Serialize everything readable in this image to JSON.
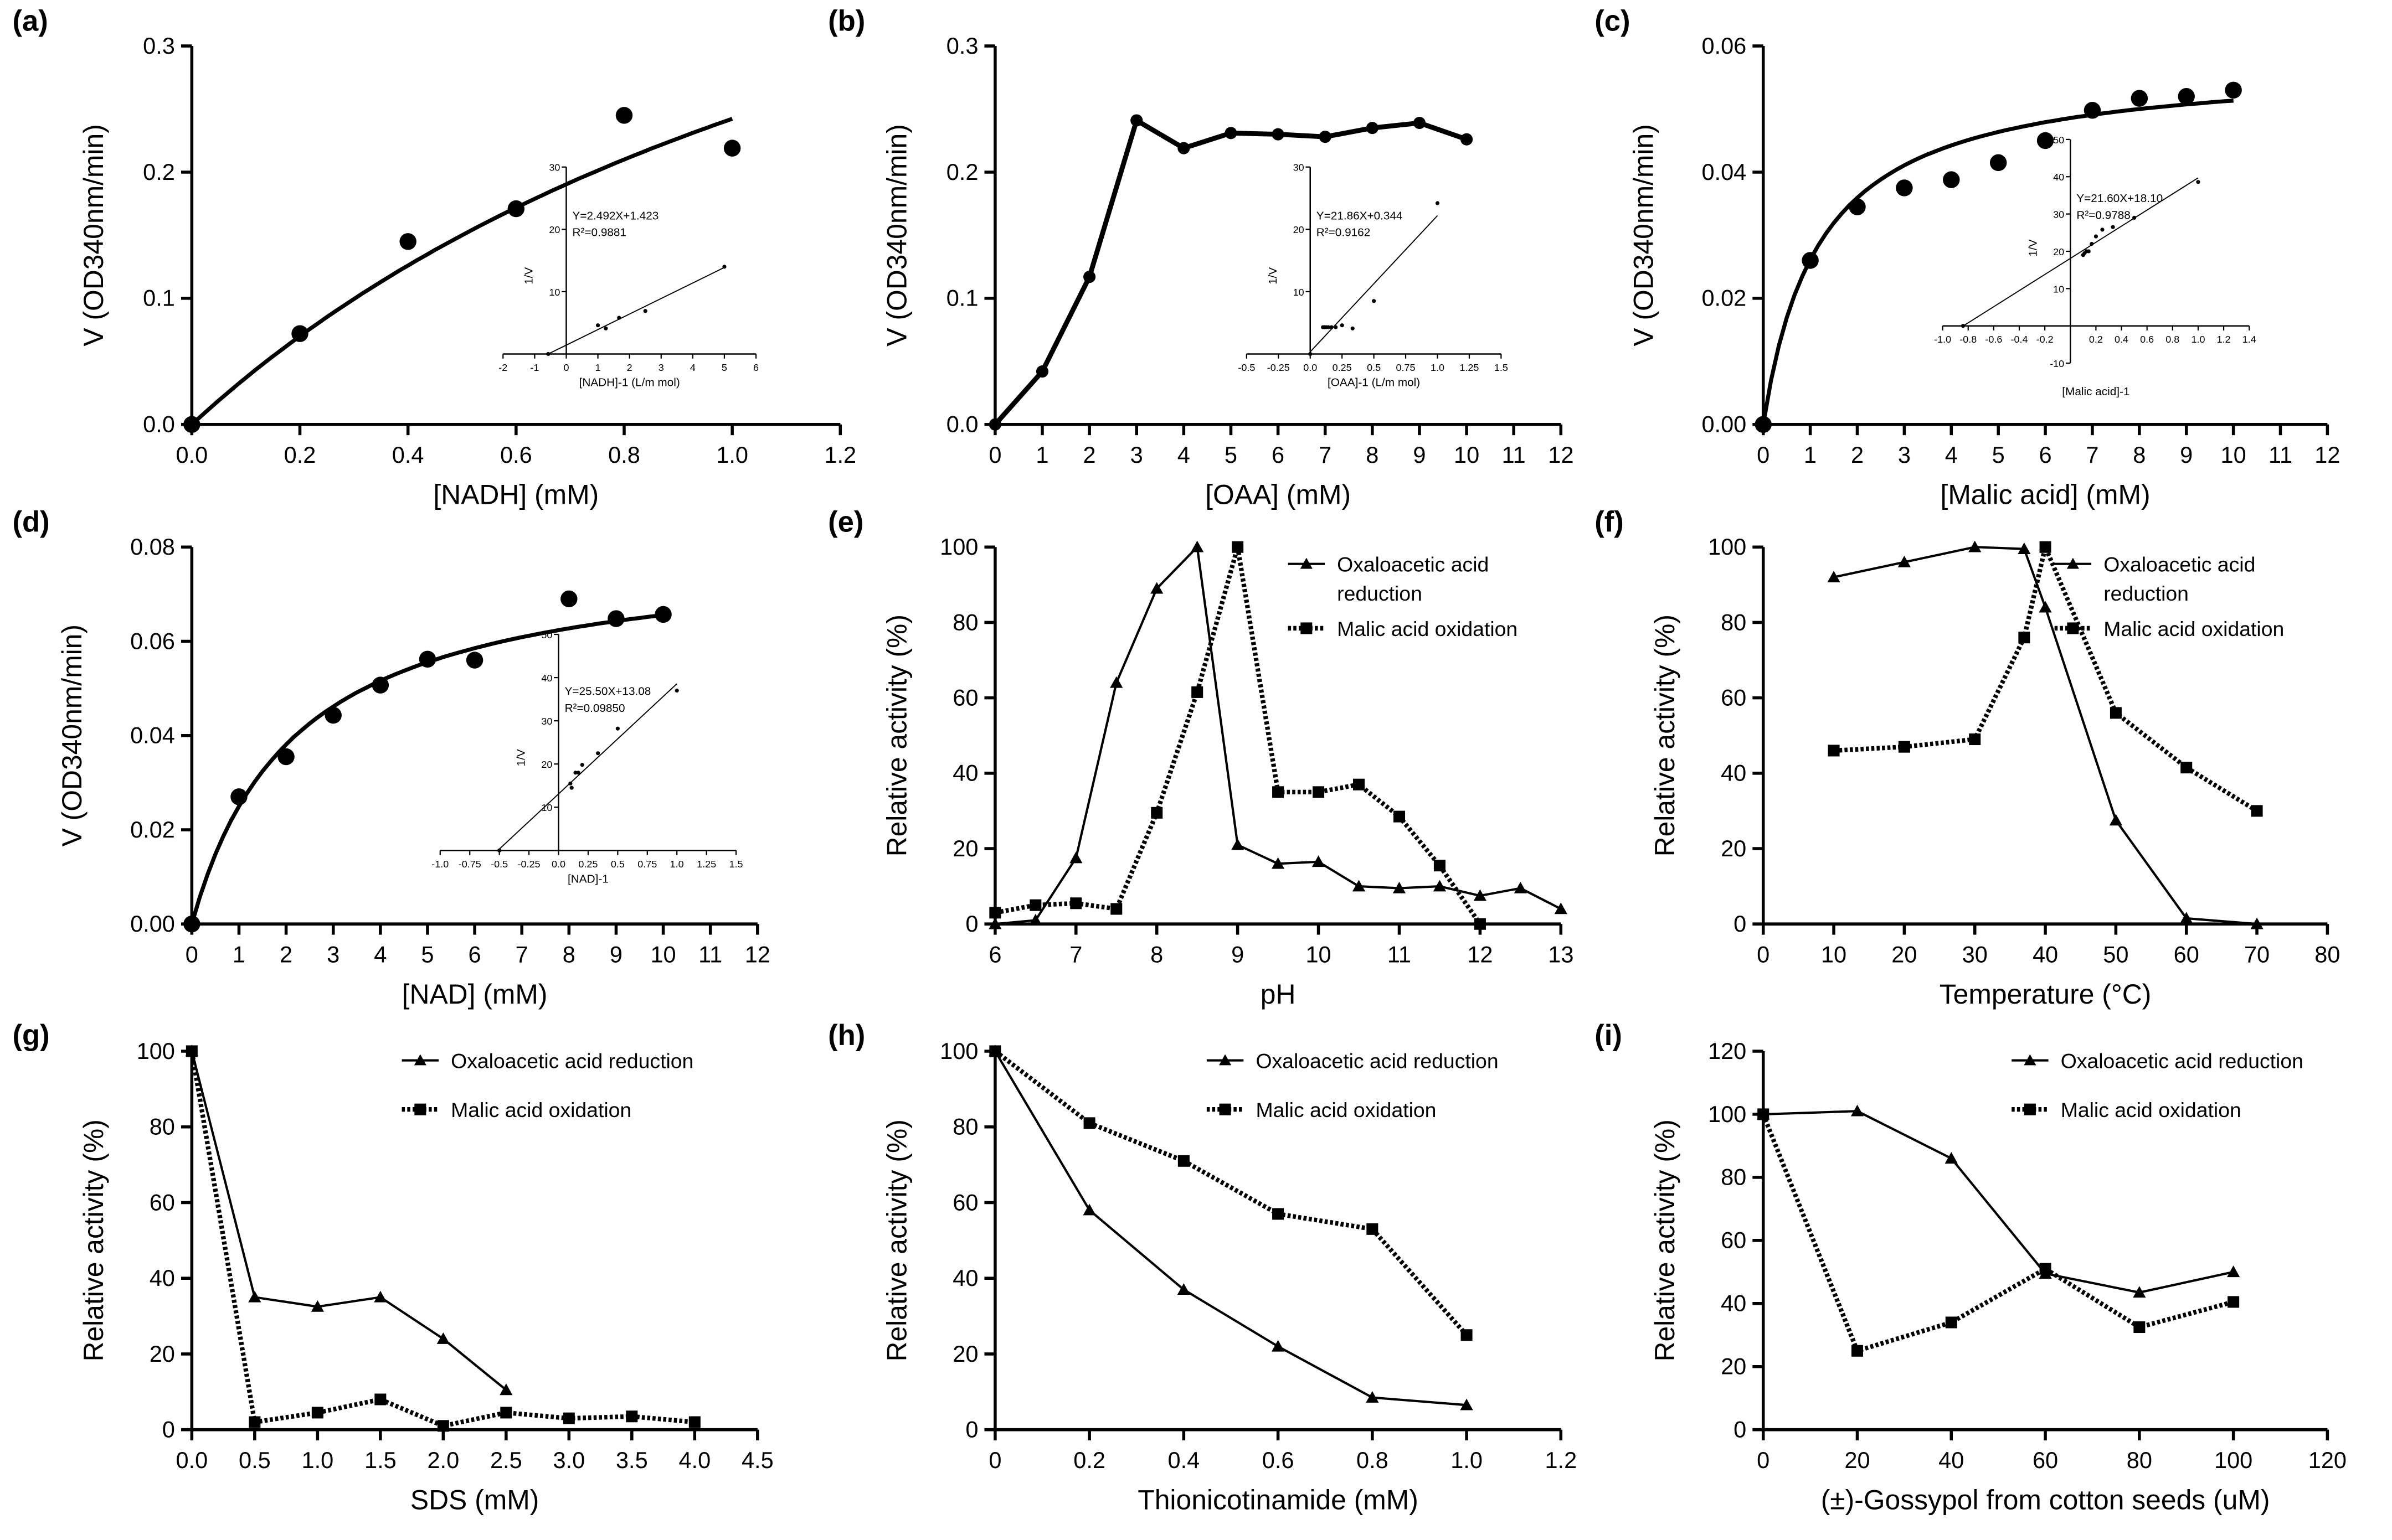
{
  "chart_data": [
    {
      "panel": "(a)",
      "type": "scatter",
      "xlabel": "[NADH] (mM)",
      "ylabel": "V (OD340nm/min)",
      "xlim": [
        0,
        1.2
      ],
      "ylim": [
        0,
        0.3
      ],
      "xticks": [
        "0.0",
        "0.2",
        "0.4",
        "0.6",
        "0.8",
        "1.0",
        "1.2"
      ],
      "yticks": [
        "0.0",
        "0.1",
        "0.2",
        "0.3"
      ],
      "points": {
        "x": [
          0,
          0.2,
          0.4,
          0.6,
          0.8,
          1.0
        ],
        "y": [
          0,
          0.072,
          0.145,
          0.171,
          0.245,
          0.219
        ]
      },
      "fit": {
        "model": "michaelis-menten",
        "vmax": 0.63,
        "km": 1.6,
        "xrange": [
          0,
          1.0
        ]
      },
      "inset": {
        "xlabel": "[NADH]-1 (L/m mol)",
        "ylabel": "1/V",
        "xlim": [
          -2,
          6
        ],
        "ylim": [
          0,
          30
        ],
        "xticks": [
          "-2",
          "-1",
          "0",
          "1",
          "2",
          "3",
          "4",
          "5",
          "6"
        ],
        "yticks": [
          "10",
          "20",
          "30"
        ],
        "points": {
          "x": [
            -0.57,
            1,
            1.25,
            1.67,
            2.5,
            5
          ],
          "y": [
            0,
            4.6,
            4.1,
            5.8,
            6.9,
            14
          ]
        },
        "line": {
          "slope": 2.492,
          "intercept": 1.423,
          "xrange": [
            -0.57,
            5
          ]
        },
        "equation": "Y=2.492X+1.423",
        "r2": "R²=0.9881"
      }
    },
    {
      "panel": "(b)",
      "type": "line",
      "xlabel": "[OAA] (mM)",
      "ylabel": "V (OD340nm/min)",
      "xlim": [
        0,
        12
      ],
      "ylim": [
        0,
        0.3
      ],
      "xticks": [
        "0",
        "1",
        "2",
        "3",
        "4",
        "5",
        "6",
        "7",
        "8",
        "9",
        "10",
        "11",
        "12"
      ],
      "yticks": [
        "0.0",
        "0.1",
        "0.2",
        "0.3"
      ],
      "points": {
        "x": [
          0,
          1,
          2,
          3,
          4,
          5,
          6,
          7,
          8,
          9,
          10
        ],
        "y": [
          0,
          0.042,
          0.117,
          0.241,
          0.219,
          0.231,
          0.23,
          0.228,
          0.235,
          0.239,
          0.226
        ]
      },
      "inset": {
        "xlabel": "[OAA]-1 (L/m mol)",
        "ylabel": "1/V",
        "xlim": [
          -0.5,
          1.5
        ],
        "ylim": [
          0,
          30
        ],
        "xticks": [
          "-0.5",
          "-0.25",
          "0.0",
          "0.25",
          "0.5",
          "0.75",
          "1.0",
          "1.25",
          "1.5"
        ],
        "yticks": [
          "10",
          "20",
          "30"
        ],
        "points": {
          "x": [
            0,
            0.1,
            0.111,
            0.125,
            0.143,
            0.167,
            0.2,
            0.25,
            0.333,
            0.5,
            1.0
          ],
          "y": [
            0,
            4.3,
            4.3,
            4.3,
            4.3,
            4.3,
            4.3,
            4.6,
            4.1,
            8.5,
            24.2
          ]
        },
        "line": {
          "slope": 21.86,
          "intercept": 0.344,
          "xrange": [
            0,
            1.0
          ]
        },
        "equation": "Y=21.86X+0.344",
        "r2": "R²=0.9162"
      }
    },
    {
      "panel": "(c)",
      "type": "scatter",
      "xlabel": "[Malic acid] (mM)",
      "ylabel": "V (OD340nm/min)",
      "xlim": [
        0,
        12
      ],
      "ylim": [
        0,
        0.06
      ],
      "xticks": [
        "0",
        "1",
        "2",
        "3",
        "4",
        "5",
        "6",
        "7",
        "8",
        "9",
        "10",
        "11",
        "12"
      ],
      "yticks": [
        "0.00",
        "0.02",
        "0.04",
        "0.06"
      ],
      "points": {
        "x": [
          0,
          1,
          2,
          3,
          4,
          5,
          6,
          7,
          8,
          9,
          10
        ],
        "y": [
          0,
          0.026,
          0.0345,
          0.0375,
          0.0388,
          0.0415,
          0.045,
          0.0498,
          0.0517,
          0.052,
          0.053
        ]
      },
      "fit": {
        "model": "michaelis-menten",
        "vmax": 0.0575,
        "km": 1.2,
        "xrange": [
          0,
          10
        ]
      },
      "inset": {
        "xlabel": "[Malic acid]-1",
        "ylabel": "1/V",
        "xlim": [
          -1.0,
          1.4
        ],
        "ylim": [
          -10,
          50
        ],
        "xticks": [
          "-1.0",
          "-0.8",
          "-0.6",
          "-0.4",
          "-0.2",
          "",
          "0.2",
          "0.4",
          "0.6",
          "0.8",
          "1.0",
          "1.2",
          "1.4"
        ],
        "yticks": [
          "-10",
          "10",
          "20",
          "30",
          "40",
          "50"
        ],
        "points": {
          "x": [
            -0.84,
            0.1,
            0.111,
            0.125,
            0.143,
            0.167,
            0.2,
            0.25,
            0.333,
            0.5,
            1.0
          ],
          "y": [
            0,
            19,
            19.5,
            20,
            20,
            22,
            24,
            25.8,
            26.5,
            29,
            38.6
          ]
        },
        "line": {
          "slope": 21.6,
          "intercept": 18.1,
          "xrange": [
            -0.84,
            1.0
          ]
        },
        "equation": "Y=21.60X+18.10",
        "r2": "R²=0.9788"
      }
    },
    {
      "panel": "(d)",
      "type": "scatter",
      "xlabel": "[NAD] (mM)",
      "ylabel": "V (OD340nm/min)",
      "xlim": [
        0,
        12
      ],
      "ylim": [
        0,
        0.08
      ],
      "xticks": [
        "0",
        "1",
        "2",
        "3",
        "4",
        "5",
        "6",
        "7",
        "8",
        "9",
        "10",
        "11",
        "12"
      ],
      "yticks": [
        "0.00",
        "0.02",
        "0.04",
        "0.06",
        "0.08"
      ],
      "points": {
        "x": [
          0,
          1,
          2,
          3,
          4,
          5,
          6,
          8,
          9,
          10
        ],
        "y": [
          0,
          0.027,
          0.0355,
          0.0443,
          0.0507,
          0.0562,
          0.056,
          0.069,
          0.0648,
          0.0657
        ]
      },
      "fit": {
        "model": "michaelis-menten",
        "vmax": 0.08,
        "km": 2.2,
        "xrange": [
          0,
          10
        ]
      },
      "inset": {
        "xlabel": "[NAD]-1",
        "ylabel": "1/V",
        "xlim": [
          -1.0,
          1.5
        ],
        "ylim": [
          0,
          50
        ],
        "xticks": [
          "-1.0",
          "-0.75",
          "-0.5",
          "-0.25",
          "0.0",
          "0.25",
          "0.5",
          "0.75",
          "1.0",
          "1.25",
          "1.5"
        ],
        "yticks": [
          "10",
          "20",
          "30",
          "40",
          "50"
        ],
        "points": {
          "x": [
            -0.5,
            0.1,
            0.111,
            0.143,
            0.167,
            0.2,
            0.333,
            0.5,
            1.0
          ],
          "y": [
            0,
            15.5,
            14.5,
            18,
            18,
            19.8,
            22.5,
            28.2,
            37
          ]
        },
        "line": {
          "slope": 25.5,
          "intercept": 13.08,
          "xrange": [
            -0.5,
            1.0
          ]
        },
        "equation": "Y=25.50X+13.08",
        "r2": "R²=0.09850"
      }
    },
    {
      "panel": "(e)",
      "type": "line",
      "xlabel": "pH",
      "ylabel": "Relative activity (%)",
      "xlim": [
        6,
        13
      ],
      "ylim": [
        0,
        100
      ],
      "xticks": [
        "6",
        "7",
        "8",
        "9",
        "10",
        "11",
        "12",
        "13"
      ],
      "yticks": [
        "0",
        "20",
        "40",
        "60",
        "80",
        "100"
      ],
      "series": [
        {
          "name": "Oxaloacetic acid reduction",
          "marker": "triangle",
          "style": "solid",
          "x": [
            6,
            6.5,
            7,
            7.5,
            8,
            8.5,
            9,
            9.5,
            10,
            10.5,
            11,
            11.5,
            12,
            12.5,
            13
          ],
          "y": [
            0,
            1,
            17.5,
            64,
            89,
            100,
            21,
            16,
            16.5,
            10,
            9.5,
            10,
            7.5,
            9.5,
            4
          ]
        },
        {
          "name": "Malic acid oxidation",
          "marker": "square",
          "style": "dotted",
          "x": [
            6,
            6.5,
            7,
            7.5,
            8,
            8.5,
            9,
            9.5,
            10,
            10.5,
            11,
            11.5,
            12
          ],
          "y": [
            3,
            5,
            5.5,
            4,
            29.5,
            61.5,
            100,
            35,
            35,
            37,
            28.5,
            15.5,
            0
          ]
        }
      ],
      "legend_lines": [
        [
          "Oxaloacetic acid",
          "reduction"
        ],
        [
          "Malic acid oxidation"
        ]
      ]
    },
    {
      "panel": "(f)",
      "type": "line",
      "xlabel": "Temperature (°C)",
      "ylabel": "Relative activity (%)",
      "xlim": [
        0,
        80
      ],
      "ylim": [
        0,
        100
      ],
      "xticks": [
        "0",
        "10",
        "20",
        "30",
        "40",
        "50",
        "60",
        "70",
        "80"
      ],
      "yticks": [
        "0",
        "20",
        "40",
        "60",
        "80",
        "100"
      ],
      "series": [
        {
          "name": "Oxaloacetic acid reduction",
          "marker": "triangle",
          "style": "solid",
          "x": [
            10,
            20,
            30,
            37,
            40,
            50,
            60,
            70
          ],
          "y": [
            92,
            96,
            100,
            99.5,
            84,
            27.5,
            1.5,
            0
          ]
        },
        {
          "name": "Malic acid oxidation",
          "marker": "square",
          "style": "dotted",
          "x": [
            10,
            20,
            30,
            37,
            40,
            50,
            60,
            70
          ],
          "y": [
            46,
            47,
            49,
            76,
            100,
            56,
            41.5,
            30
          ]
        }
      ],
      "legend_lines": [
        [
          "Oxaloacetic acid",
          "reduction"
        ],
        [
          "Malic acid oxidation"
        ]
      ]
    },
    {
      "panel": "(g)",
      "type": "line",
      "xlabel": "SDS (mM)",
      "ylabel": "Relative activity (%)",
      "xlim": [
        0,
        4.5
      ],
      "ylim": [
        0,
        100
      ],
      "xticks": [
        "0.0",
        "0.5",
        "1.0",
        "1.5",
        "2.0",
        "2.5",
        "3.0",
        "3.5",
        "4.0",
        "4.5"
      ],
      "yticks": [
        "0",
        "20",
        "40",
        "60",
        "80",
        "100"
      ],
      "series": [
        {
          "name": "Oxaloacetic acid reduction",
          "marker": "triangle",
          "style": "solid",
          "x": [
            0,
            0.5,
            1,
            1.5,
            2,
            2.5
          ],
          "y": [
            100,
            35,
            32.5,
            35,
            24,
            10.5
          ]
        },
        {
          "name": "Malic acid oxidation",
          "marker": "square",
          "style": "dotted",
          "x": [
            0,
            0.5,
            1,
            1.5,
            2,
            2.5,
            3,
            3.5,
            4
          ],
          "y": [
            100,
            2,
            4.5,
            8,
            1,
            4.5,
            3,
            3.5,
            2
          ]
        }
      ],
      "legend_lines": [
        [
          "Oxaloacetic acid reduction"
        ],
        [
          "Malic acid oxidation"
        ]
      ]
    },
    {
      "panel": "(h)",
      "type": "line",
      "xlabel": "Thionicotinamide (mM)",
      "ylabel": "Relative activity (%)",
      "xlim": [
        0,
        1.2
      ],
      "ylim": [
        0,
        100
      ],
      "xticks": [
        "0",
        "0.2",
        "0.4",
        "0.6",
        "0.8",
        "1.0",
        "1.2"
      ],
      "yticks": [
        "0",
        "20",
        "40",
        "60",
        "80",
        "100"
      ],
      "series": [
        {
          "name": "Oxaloacetic acid reduction",
          "marker": "triangle",
          "style": "solid",
          "x": [
            0,
            0.2,
            0.4,
            0.6,
            0.8,
            1.0
          ],
          "y": [
            100,
            58,
            37,
            22,
            8.5,
            6.5
          ]
        },
        {
          "name": "Malic acid oxidation",
          "marker": "square",
          "style": "dotted",
          "x": [
            0,
            0.2,
            0.4,
            0.6,
            0.8,
            1.0
          ],
          "y": [
            100,
            81,
            71,
            57,
            53,
            25
          ]
        }
      ],
      "legend_lines": [
        [
          "Oxaloacetic acid reduction"
        ],
        [
          "Malic acid oxidation"
        ]
      ]
    },
    {
      "panel": "(i)",
      "type": "line",
      "xlabel": "(±)-Gossypol from cotton seeds (uM)",
      "ylabel": "Relative activity (%)",
      "xlim": [
        0,
        120
      ],
      "ylim": [
        0,
        120
      ],
      "xticks": [
        "0",
        "20",
        "40",
        "60",
        "80",
        "100",
        "120"
      ],
      "yticks": [
        "0",
        "20",
        "40",
        "60",
        "80",
        "100",
        "120"
      ],
      "series": [
        {
          "name": "Oxaloacetic acid reduction",
          "marker": "triangle",
          "style": "solid",
          "x": [
            0,
            20,
            40,
            60,
            80,
            100
          ],
          "y": [
            100,
            101,
            86,
            49.5,
            43.5,
            50
          ]
        },
        {
          "name": "Malic acid oxidation",
          "marker": "square",
          "style": "dotted",
          "x": [
            0,
            20,
            40,
            60,
            80,
            100
          ],
          "y": [
            100,
            25,
            34,
            51,
            32.5,
            40.5
          ]
        }
      ],
      "legend_lines": [
        [
          "Oxaloacetic acid reduction"
        ],
        [
          "Malic acid oxidation"
        ]
      ]
    }
  ]
}
